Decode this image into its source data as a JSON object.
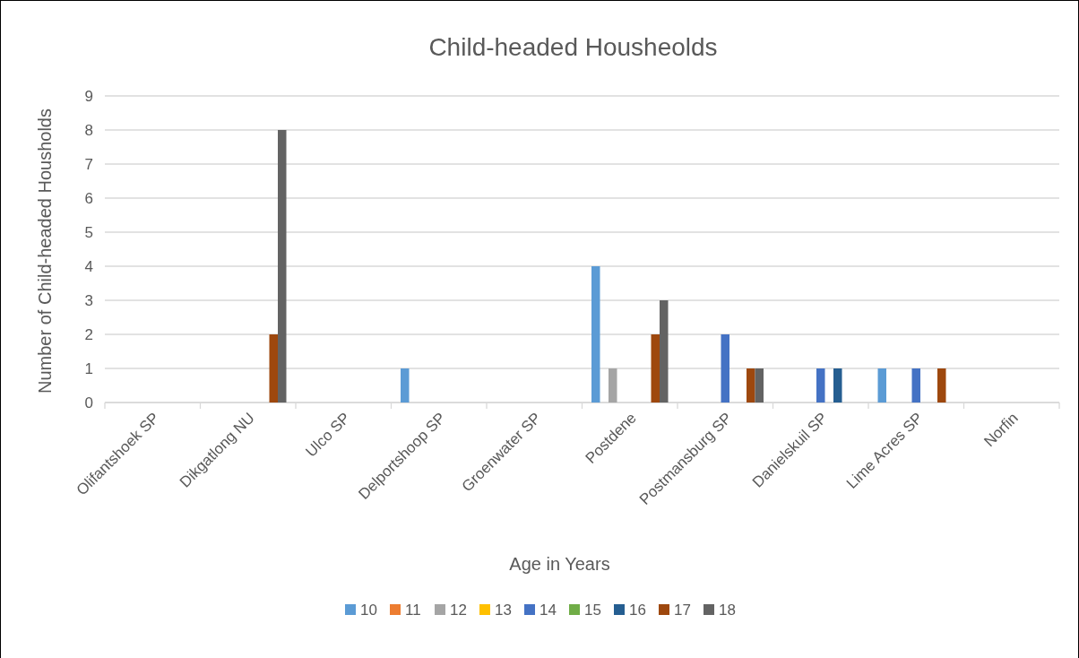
{
  "chart_data": {
    "type": "bar",
    "title": "Child-headed Housheolds",
    "xlabel": "Age in Years",
    "ylabel": "Number of Child-headed Housholds",
    "categories": [
      "Olifantshoek SP",
      "Dikgatlong NU",
      "Ulco SP",
      "Delportshoop SP",
      "Groenwater SP",
      "Postdene",
      "Postmansburg SP",
      "Danielskuil SP",
      "Lime Acres SP",
      "Norfin"
    ],
    "series": [
      {
        "name": "10",
        "color": "#5b9bd5",
        "values": [
          null,
          null,
          null,
          1,
          null,
          4,
          null,
          null,
          1,
          null
        ]
      },
      {
        "name": "11",
        "color": "#ed7d31",
        "values": [
          null,
          null,
          null,
          null,
          null,
          null,
          null,
          null,
          null,
          null
        ]
      },
      {
        "name": "12",
        "color": "#a5a5a5",
        "values": [
          null,
          null,
          null,
          null,
          null,
          1,
          null,
          null,
          null,
          null
        ]
      },
      {
        "name": "13",
        "color": "#ffc000",
        "values": [
          null,
          null,
          null,
          null,
          null,
          null,
          null,
          null,
          null,
          null
        ]
      },
      {
        "name": "14",
        "color": "#4472c4",
        "values": [
          null,
          null,
          null,
          null,
          null,
          null,
          2,
          1,
          1,
          null
        ]
      },
      {
        "name": "15",
        "color": "#70ad47",
        "values": [
          null,
          null,
          null,
          null,
          null,
          null,
          null,
          null,
          null,
          null
        ]
      },
      {
        "name": "16",
        "color": "#255e91",
        "values": [
          null,
          null,
          null,
          null,
          null,
          null,
          null,
          1,
          null,
          null
        ]
      },
      {
        "name": "17",
        "color": "#9e480e",
        "values": [
          null,
          2,
          null,
          null,
          null,
          2,
          1,
          null,
          1,
          null
        ]
      },
      {
        "name": "18",
        "color": "#636363",
        "values": [
          null,
          8,
          null,
          null,
          null,
          3,
          1,
          null,
          null,
          null
        ]
      }
    ],
    "ylim": [
      0,
      9
    ],
    "yticks": [
      0,
      1,
      2,
      3,
      4,
      5,
      6,
      7,
      8,
      9
    ],
    "grid": "y",
    "legend": "bottom"
  }
}
